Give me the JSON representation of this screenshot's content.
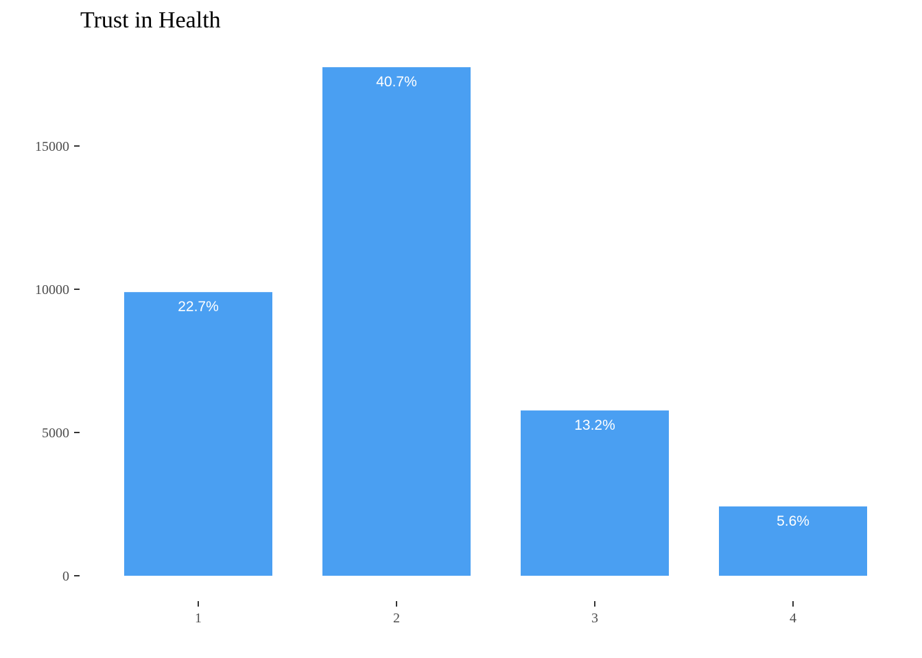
{
  "chart_data": {
    "type": "bar",
    "title": "Trust in Health",
    "xlabel": "",
    "ylabel": "",
    "categories": [
      "1",
      "2",
      "3",
      "4"
    ],
    "values": [
      9900,
      17750,
      5770,
      2420
    ],
    "data_labels": [
      "22.7%",
      "40.7%",
      "13.2%",
      "5.6%"
    ],
    "yticks": [
      0,
      5000,
      10000,
      15000
    ],
    "ylim": [
      0,
      18000
    ],
    "grid": false,
    "legend": "none",
    "bar_color": "#4A9FF2",
    "label_color": "#FFFFFF"
  }
}
